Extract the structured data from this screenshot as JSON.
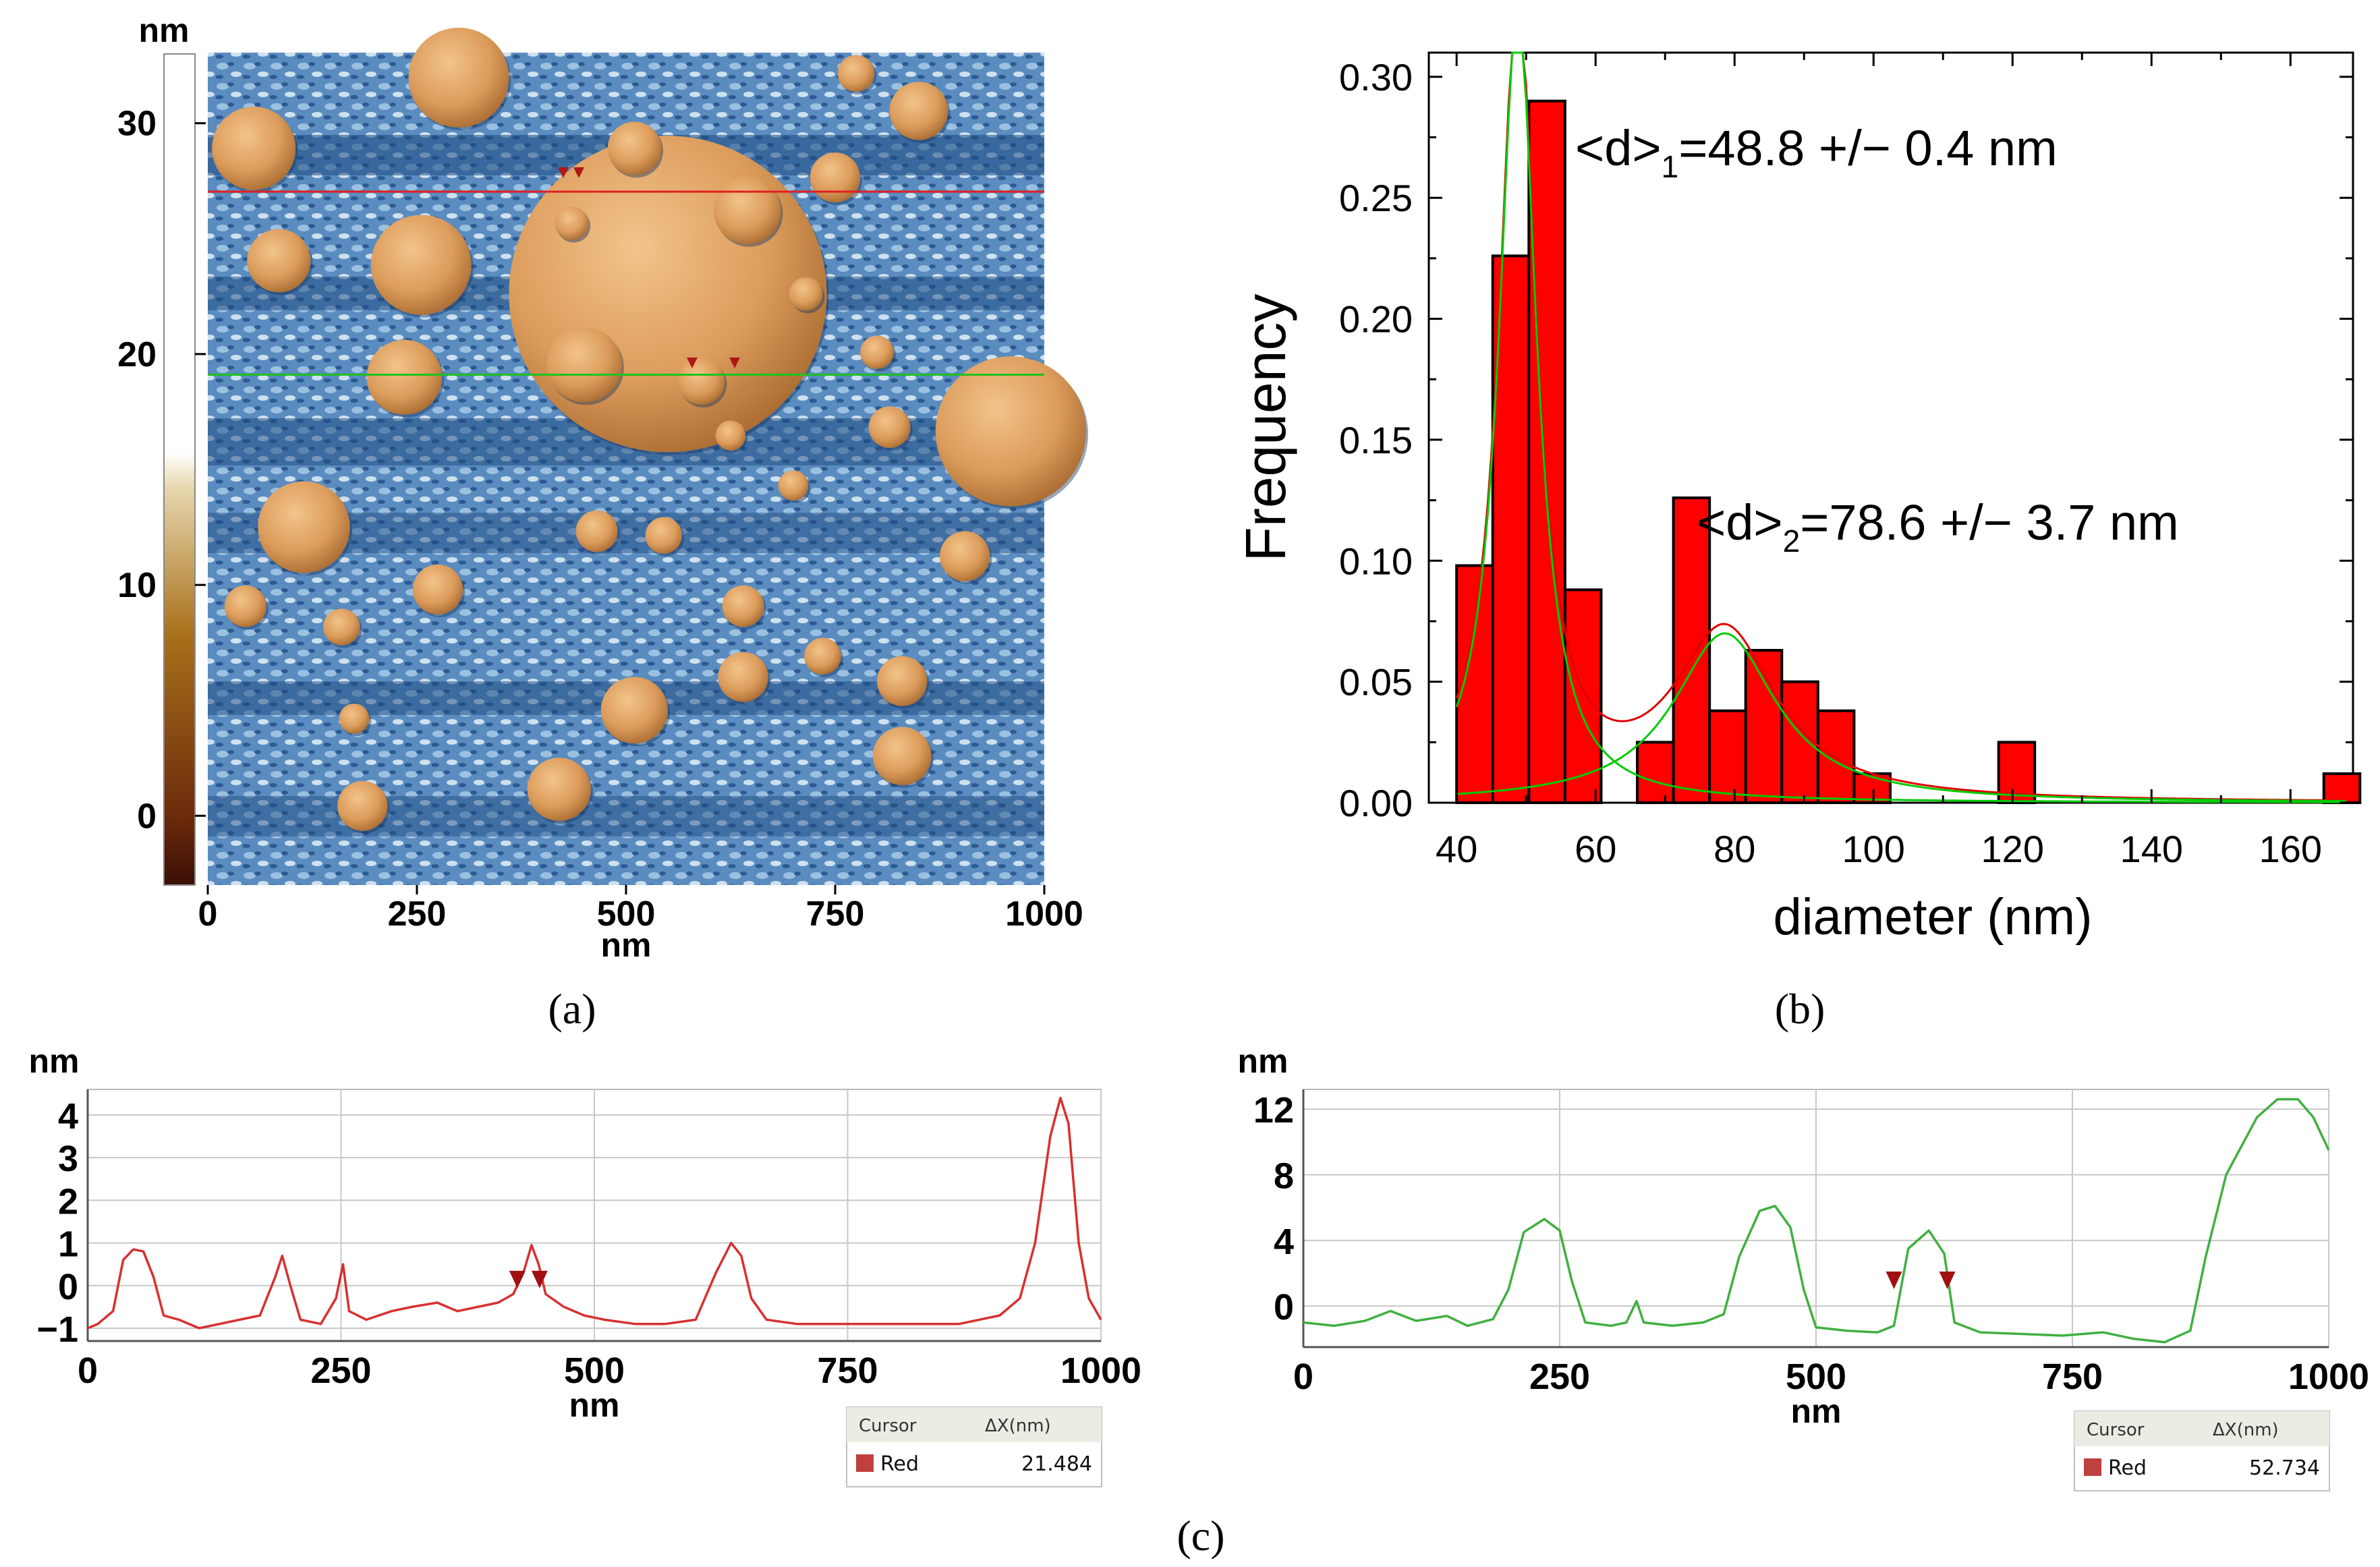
{
  "panels": {
    "a": {
      "caption": "(a)",
      "scale_unit": "nm",
      "scale_ticks": [
        "0",
        "10",
        "20",
        "30"
      ],
      "scale_tick_values": [
        0,
        10,
        20,
        30
      ],
      "scale_range": [
        -3,
        33
      ],
      "x_ticks": [
        "0",
        "250",
        "500",
        "750",
        "1000"
      ],
      "x_tick_values": [
        0,
        250,
        500,
        750,
        1000
      ],
      "x_range": [
        0,
        1000
      ],
      "x_unit": "nm",
      "profile_lines": [
        {
          "color": "#e02020",
          "y_position_nm": 833
        },
        {
          "color": "#20c020",
          "y_position_nm": 613
        }
      ],
      "particles_nm": [
        {
          "x": 550,
          "y": 710,
          "r": 190
        },
        {
          "x": 960,
          "y": 545,
          "r": 90
        },
        {
          "x": 300,
          "y": 970,
          "r": 60
        },
        {
          "x": 55,
          "y": 885,
          "r": 50
        },
        {
          "x": 255,
          "y": 745,
          "r": 60
        },
        {
          "x": 645,
          "y": 810,
          "r": 40
        },
        {
          "x": 450,
          "y": 625,
          "r": 45
        },
        {
          "x": 235,
          "y": 610,
          "r": 45
        },
        {
          "x": 115,
          "y": 430,
          "r": 55
        },
        {
          "x": 590,
          "y": 605,
          "r": 28
        },
        {
          "x": 85,
          "y": 750,
          "r": 38
        },
        {
          "x": 510,
          "y": 885,
          "r": 32
        },
        {
          "x": 850,
          "y": 930,
          "r": 35
        },
        {
          "x": 750,
          "y": 850,
          "r": 30
        },
        {
          "x": 510,
          "y": 210,
          "r": 40
        },
        {
          "x": 830,
          "y": 155,
          "r": 35
        },
        {
          "x": 275,
          "y": 355,
          "r": 30
        },
        {
          "x": 420,
          "y": 115,
          "r": 38
        },
        {
          "x": 185,
          "y": 95,
          "r": 30
        },
        {
          "x": 830,
          "y": 245,
          "r": 30
        },
        {
          "x": 640,
          "y": 250,
          "r": 30
        },
        {
          "x": 905,
          "y": 395,
          "r": 30
        },
        {
          "x": 640,
          "y": 335,
          "r": 25
        },
        {
          "x": 545,
          "y": 420,
          "r": 22
        },
        {
          "x": 465,
          "y": 425,
          "r": 25
        },
        {
          "x": 735,
          "y": 275,
          "r": 22
        },
        {
          "x": 815,
          "y": 550,
          "r": 25
        },
        {
          "x": 435,
          "y": 795,
          "r": 20
        },
        {
          "x": 715,
          "y": 710,
          "r": 20
        },
        {
          "x": 800,
          "y": 640,
          "r": 20
        },
        {
          "x": 45,
          "y": 335,
          "r": 25
        },
        {
          "x": 160,
          "y": 310,
          "r": 22
        },
        {
          "x": 775,
          "y": 975,
          "r": 22
        },
        {
          "x": 625,
          "y": 540,
          "r": 18
        },
        {
          "x": 700,
          "y": 480,
          "r": 18
        },
        {
          "x": 175,
          "y": 200,
          "r": 18
        }
      ]
    },
    "b": {
      "caption": "(b)",
      "chart_data": {
        "type": "bar",
        "xlabel": "diameter (nm)",
        "ylabel": "Frequency",
        "xlim": [
          36,
          169
        ],
        "ylim": [
          0,
          0.31
        ],
        "x_ticks": [
          "40",
          "60",
          "80",
          "100",
          "120",
          "140",
          "160"
        ],
        "x_tick_values": [
          40,
          60,
          80,
          100,
          120,
          140,
          160
        ],
        "y_ticks": [
          "0.00",
          "0.05",
          "0.10",
          "0.15",
          "0.20",
          "0.25",
          "0.30"
        ],
        "y_tick_values": [
          0,
          0.05,
          0.1,
          0.15,
          0.2,
          0.25,
          0.3
        ],
        "bin_width": 5.2,
        "bins": [
          {
            "x": 40,
            "value": 0.098
          },
          {
            "x": 45.2,
            "value": 0.226
          },
          {
            "x": 50.4,
            "value": 0.29
          },
          {
            "x": 55.6,
            "value": 0.088
          },
          {
            "x": 60.8,
            "value": 0
          },
          {
            "x": 66.0,
            "value": 0.025
          },
          {
            "x": 71.2,
            "value": 0.126
          },
          {
            "x": 76.4,
            "value": 0.038
          },
          {
            "x": 81.6,
            "value": 0.063
          },
          {
            "x": 86.8,
            "value": 0.05
          },
          {
            "x": 92.0,
            "value": 0.038
          },
          {
            "x": 97.2,
            "value": 0.012
          },
          {
            "x": 102.4,
            "value": 0
          },
          {
            "x": 107.6,
            "value": 0
          },
          {
            "x": 112.8,
            "value": 0
          },
          {
            "x": 118.0,
            "value": 0.025
          },
          {
            "x": 123.2,
            "value": 0
          },
          {
            "x": 128.4,
            "value": 0
          },
          {
            "x": 133.6,
            "value": 0
          },
          {
            "x": 138.8,
            "value": 0
          },
          {
            "x": 144.0,
            "value": 0
          },
          {
            "x": 149.2,
            "value": 0
          },
          {
            "x": 154.4,
            "value": 0
          },
          {
            "x": 159.6,
            "value": 0
          },
          {
            "x": 164.8,
            "value": 0.012
          }
        ],
        "fits": [
          {
            "color": "#e00000",
            "components": [
              {
                "amp": 0.33,
                "mu": 48.8,
                "w": 6.5
              },
              {
                "amp": 0.07,
                "mu": 78.6,
                "w": 18
              }
            ]
          },
          {
            "color": "#00cc00",
            "components": [
              {
                "amp": 0.33,
                "mu": 48.8,
                "w": 6.5
              }
            ]
          },
          {
            "color": "#00cc00",
            "components": [
              {
                "amp": 0.07,
                "mu": 78.6,
                "w": 18
              }
            ]
          }
        ],
        "annotations": [
          {
            "prefix": "<d>",
            "sub": "1",
            "suffix": "=48.8 +/− 0.4 nm"
          },
          {
            "prefix": "<d>",
            "sub": "2",
            "suffix": "=78.6 +/− 3.7 nm"
          }
        ]
      }
    },
    "c": {
      "caption": "(c)",
      "charts": [
        {
          "color": "#d83030",
          "y_unit": "nm",
          "x_unit": "nm",
          "xlim": [
            0,
            1000
          ],
          "ylim": [
            -1.3,
            4.6
          ],
          "y_ticks": [
            "4",
            "3",
            "2",
            "1",
            "0",
            "−1"
          ],
          "y_tick_values": [
            4,
            3,
            2,
            1,
            0,
            -1
          ],
          "x_ticks": [
            "0",
            "250",
            "500",
            "750",
            "1000"
          ],
          "x_tick_values": [
            0,
            250,
            500,
            750,
            1000
          ],
          "cursor_x": [
            424,
            446
          ],
          "cursor_y": 0.0,
          "cursor_header": "Cursor",
          "cursor_col": "ΔX(nm)",
          "cursor_row_label": "Red",
          "cursor_value": "21.484",
          "profile": [
            [
              0,
              -1.0
            ],
            [
              10,
              -0.9
            ],
            [
              25,
              -0.6
            ],
            [
              35,
              0.6
            ],
            [
              45,
              0.85
            ],
            [
              55,
              0.8
            ],
            [
              65,
              0.2
            ],
            [
              75,
              -0.7
            ],
            [
              90,
              -0.8
            ],
            [
              110,
              -1.0
            ],
            [
              130,
              -0.9
            ],
            [
              150,
              -0.8
            ],
            [
              170,
              -0.7
            ],
            [
              185,
              0.2
            ],
            [
              192,
              0.7
            ],
            [
              200,
              0.0
            ],
            [
              210,
              -0.8
            ],
            [
              230,
              -0.9
            ],
            [
              245,
              -0.3
            ],
            [
              252,
              0.5
            ],
            [
              258,
              -0.6
            ],
            [
              275,
              -0.8
            ],
            [
              300,
              -0.6
            ],
            [
              320,
              -0.5
            ],
            [
              345,
              -0.4
            ],
            [
              365,
              -0.6
            ],
            [
              385,
              -0.5
            ],
            [
              405,
              -0.4
            ],
            [
              420,
              -0.2
            ],
            [
              430,
              0.3
            ],
            [
              438,
              0.95
            ],
            [
              445,
              0.5
            ],
            [
              452,
              -0.2
            ],
            [
              470,
              -0.5
            ],
            [
              490,
              -0.7
            ],
            [
              510,
              -0.8
            ],
            [
              540,
              -0.9
            ],
            [
              570,
              -0.9
            ],
            [
              600,
              -0.8
            ],
            [
              620,
              0.3
            ],
            [
              635,
              1.0
            ],
            [
              645,
              0.7
            ],
            [
              655,
              -0.3
            ],
            [
              670,
              -0.8
            ],
            [
              700,
              -0.9
            ],
            [
              740,
              -0.9
            ],
            [
              780,
              -0.9
            ],
            [
              820,
              -0.9
            ],
            [
              860,
              -0.9
            ],
            [
              900,
              -0.7
            ],
            [
              920,
              -0.3
            ],
            [
              935,
              1.0
            ],
            [
              950,
              3.5
            ],
            [
              960,
              4.4
            ],
            [
              968,
              3.8
            ],
            [
              978,
              1.0
            ],
            [
              988,
              -0.3
            ],
            [
              1000,
              -0.8
            ]
          ]
        },
        {
          "color": "#40b040",
          "y_unit": "nm",
          "x_unit": "nm",
          "xlim": [
            0,
            1000
          ],
          "ylim": [
            -2.5,
            13.2
          ],
          "y_ticks": [
            "12",
            "8",
            "4",
            "0"
          ],
          "y_tick_values": [
            12,
            8,
            4,
            0
          ],
          "x_ticks": [
            "0",
            "250",
            "500",
            "750",
            "1000"
          ],
          "x_tick_values": [
            0,
            250,
            500,
            750,
            1000
          ],
          "cursor_x": [
            576,
            628
          ],
          "cursor_y": 1.2,
          "cursor_header": "Cursor",
          "cursor_col": "ΔX(nm)",
          "cursor_row_label": "Red",
          "cursor_value": "52.734",
          "profile": [
            [
              0,
              -1.0
            ],
            [
              30,
              -1.2
            ],
            [
              60,
              -0.9
            ],
            [
              85,
              -0.3
            ],
            [
              110,
              -0.9
            ],
            [
              140,
              -0.6
            ],
            [
              160,
              -1.2
            ],
            [
              185,
              -0.8
            ],
            [
              200,
              1.0
            ],
            [
              215,
              4.5
            ],
            [
              235,
              5.3
            ],
            [
              250,
              4.6
            ],
            [
              262,
              1.5
            ],
            [
              275,
              -1.0
            ],
            [
              300,
              -1.2
            ],
            [
              315,
              -1.0
            ],
            [
              325,
              0.3
            ],
            [
              332,
              -1.0
            ],
            [
              360,
              -1.2
            ],
            [
              390,
              -1.0
            ],
            [
              410,
              -0.5
            ],
            [
              425,
              3.0
            ],
            [
              445,
              5.8
            ],
            [
              460,
              6.1
            ],
            [
              475,
              4.8
            ],
            [
              488,
              1.0
            ],
            [
              500,
              -1.3
            ],
            [
              530,
              -1.5
            ],
            [
              560,
              -1.6
            ],
            [
              576,
              -1.2
            ],
            [
              590,
              3.5
            ],
            [
              610,
              4.6
            ],
            [
              625,
              3.2
            ],
            [
              635,
              -1.0
            ],
            [
              660,
              -1.6
            ],
            [
              700,
              -1.7
            ],
            [
              740,
              -1.8
            ],
            [
              780,
              -1.6
            ],
            [
              810,
              -2.0
            ],
            [
              840,
              -2.2
            ],
            [
              865,
              -1.5
            ],
            [
              880,
              3.0
            ],
            [
              900,
              8.0
            ],
            [
              930,
              11.5
            ],
            [
              950,
              12.6
            ],
            [
              970,
              12.6
            ],
            [
              985,
              11.5
            ],
            [
              1000,
              9.5
            ]
          ]
        }
      ]
    }
  },
  "colors": {
    "bar": "#ff0000",
    "fit_total": "#e00000",
    "fit_component": "#00cc00",
    "particle": "#d89a5a",
    "substrate": "#3a6ea8"
  }
}
